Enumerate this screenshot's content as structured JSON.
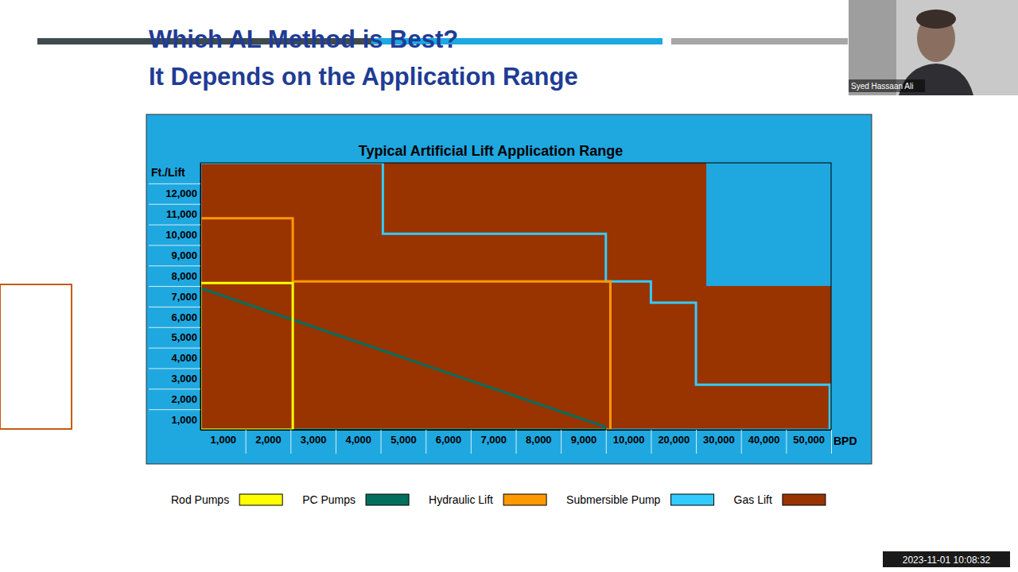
{
  "slide": {
    "title_lines": [
      "Which AL Method is Best?",
      "It Depends on the Application Range"
    ],
    "presenter": "Syed Hassaan Ali",
    "timestamp": "2023-11-01 10:08:32"
  },
  "chart_data": {
    "type": "area",
    "title": "Typical Artificial Lift Application Range",
    "y_label": "Ft./Lift",
    "x_label": "BPD",
    "xlim": [
      0,
      50000
    ],
    "xticks": [
      {
        "value": 1000,
        "label": "1,000"
      },
      {
        "value": 2000,
        "label": "2,000"
      },
      {
        "value": 3000,
        "label": "3,000"
      },
      {
        "value": 4000,
        "label": "4,000"
      },
      {
        "value": 5000,
        "label": "5,000"
      },
      {
        "value": 6000,
        "label": "6,000"
      },
      {
        "value": 7000,
        "label": "7,000"
      },
      {
        "value": 8000,
        "label": "8,000"
      },
      {
        "value": 9000,
        "label": "9,000"
      },
      {
        "value": 10000,
        "label": "10,000"
      },
      {
        "value": 20000,
        "label": "20,000"
      },
      {
        "value": 30000,
        "label": "30,000"
      },
      {
        "value": 40000,
        "label": "40,000"
      },
      {
        "value": 50000,
        "label": "50,000"
      }
    ],
    "ylim": [
      0,
      13000
    ],
    "yticks": [
      {
        "value": 1000,
        "label": "1,000"
      },
      {
        "value": 2000,
        "label": "2,000"
      },
      {
        "value": 3000,
        "label": "3,000"
      },
      {
        "value": 4000,
        "label": "4,000"
      },
      {
        "value": 5000,
        "label": "5,000"
      },
      {
        "value": 6000,
        "label": "6,000"
      },
      {
        "value": 7000,
        "label": "7,000"
      },
      {
        "value": 8000,
        "label": "8,000"
      },
      {
        "value": 9000,
        "label": "9,000"
      },
      {
        "value": 10000,
        "label": "10,000"
      },
      {
        "value": 11000,
        "label": "11,000"
      },
      {
        "value": 12000,
        "label": "12,000"
      }
    ],
    "legend": "bottom",
    "series": [
      {
        "name": "Rod Pumps",
        "color": "#ffff00",
        "type": "step_outline",
        "x": [
          0,
          2050
        ],
        "values": [
          7150,
          7150
        ]
      },
      {
        "name": "PC Pumps",
        "color": "#00705e",
        "type": "outline",
        "x": [
          0,
          8980
        ],
        "values": [
          6900,
          150
        ]
      },
      {
        "name": "Hydraulic Lift",
        "color": "#ff9900",
        "type": "step_outline",
        "x": [
          0,
          2050,
          9100
        ],
        "values": [
          10300,
          7230,
          7230
        ]
      },
      {
        "name": "Submersible Pump",
        "color": "#33ccff",
        "type": "step_outline",
        "x": [
          0,
          4050,
          9000,
          10000,
          20000,
          49700
        ],
        "values": [
          13000,
          9550,
          7230,
          6190,
          2200,
          2200
        ]
      },
      {
        "name": "Gas Lift",
        "color": "#993300",
        "type": "step_area",
        "x": [
          0,
          22300,
          50000
        ],
        "values": [
          13000,
          7000,
          7000
        ]
      }
    ]
  }
}
